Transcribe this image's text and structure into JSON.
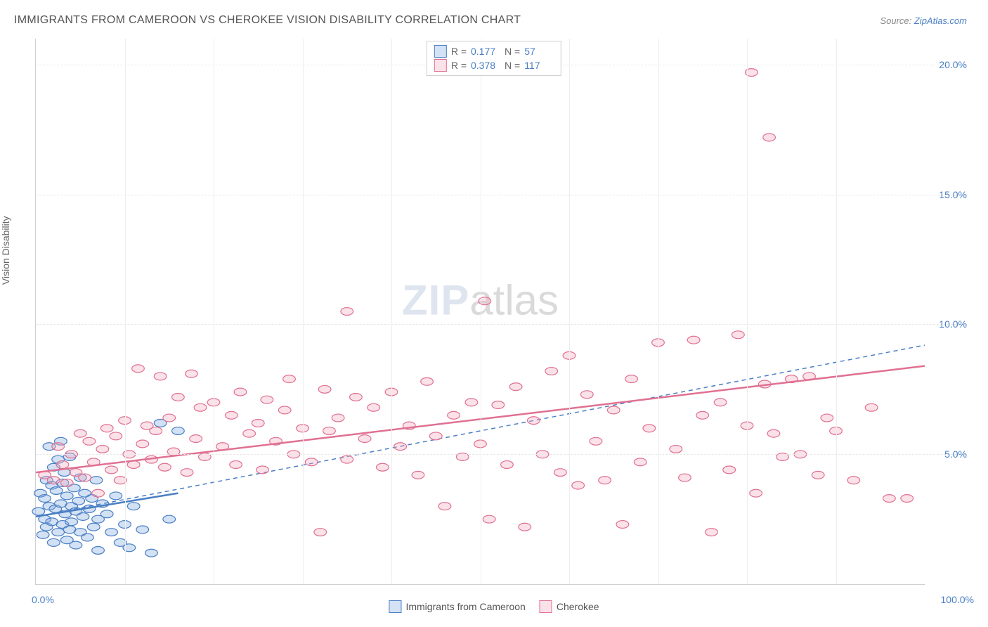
{
  "title": "IMMIGRANTS FROM CAMEROON VS CHEROKEE VISION DISABILITY CORRELATION CHART",
  "source_prefix": "Source: ",
  "source_name": "ZipAtlas.com",
  "y_axis_label": "Vision Disability",
  "watermark_zip": "ZIP",
  "watermark_atlas": "atlas",
  "chart": {
    "type": "scatter",
    "xlim": [
      0,
      100
    ],
    "ylim": [
      0,
      21
    ],
    "x_ticks": [
      0,
      100
    ],
    "x_tick_labels": [
      "0.0%",
      "100.0%"
    ],
    "x_minor_ticks": [
      10,
      20,
      30,
      40,
      50,
      60,
      70,
      80,
      90
    ],
    "y_ticks": [
      5,
      10,
      15,
      20
    ],
    "y_tick_labels": [
      "5.0%",
      "10.0%",
      "15.0%",
      "20.0%"
    ],
    "grid_color": "#e8e8e8",
    "axis_color": "#d0d0d0",
    "background": "#ffffff",
    "marker_radius": 7,
    "series": [
      {
        "key": "cameroon",
        "label": "Immigrants from Cameroon",
        "color_fill": "#7fa8e0",
        "color_stroke": "#4a7fc4",
        "R": "0.177",
        "N": "57",
        "trend_solid": {
          "x1": 0,
          "y1": 2.6,
          "x2": 16,
          "y2": 3.5
        },
        "trend_dashed": {
          "x1": 0,
          "y1": 2.6,
          "x2": 100,
          "y2": 9.2
        },
        "points": [
          [
            0.3,
            2.8
          ],
          [
            0.5,
            3.5
          ],
          [
            0.8,
            1.9
          ],
          [
            1.0,
            2.5
          ],
          [
            1.0,
            3.3
          ],
          [
            1.2,
            4.0
          ],
          [
            1.2,
            2.2
          ],
          [
            1.5,
            3.0
          ],
          [
            1.5,
            5.3
          ],
          [
            1.8,
            2.4
          ],
          [
            1.8,
            3.8
          ],
          [
            2.0,
            1.6
          ],
          [
            2.0,
            4.5
          ],
          [
            2.2,
            2.9
          ],
          [
            2.3,
            3.6
          ],
          [
            2.5,
            2.0
          ],
          [
            2.5,
            4.8
          ],
          [
            2.8,
            3.1
          ],
          [
            2.8,
            5.5
          ],
          [
            3.0,
            2.3
          ],
          [
            3.0,
            3.9
          ],
          [
            3.2,
            4.3
          ],
          [
            3.3,
            2.7
          ],
          [
            3.5,
            1.7
          ],
          [
            3.5,
            3.4
          ],
          [
            3.8,
            2.1
          ],
          [
            3.8,
            4.9
          ],
          [
            4.0,
            3.0
          ],
          [
            4.0,
            2.4
          ],
          [
            4.3,
            3.7
          ],
          [
            4.5,
            1.5
          ],
          [
            4.5,
            2.8
          ],
          [
            4.8,
            3.2
          ],
          [
            5.0,
            2.0
          ],
          [
            5.0,
            4.1
          ],
          [
            5.3,
            2.6
          ],
          [
            5.5,
            3.5
          ],
          [
            5.8,
            1.8
          ],
          [
            6.0,
            2.9
          ],
          [
            6.3,
            3.3
          ],
          [
            6.5,
            2.2
          ],
          [
            6.8,
            4.0
          ],
          [
            7.0,
            2.5
          ],
          [
            7.0,
            1.3
          ],
          [
            7.5,
            3.1
          ],
          [
            8.0,
            2.7
          ],
          [
            8.5,
            2.0
          ],
          [
            9.0,
            3.4
          ],
          [
            9.5,
            1.6
          ],
          [
            10.0,
            2.3
          ],
          [
            10.5,
            1.4
          ],
          [
            11.0,
            3.0
          ],
          [
            12.0,
            2.1
          ],
          [
            13.0,
            1.2
          ],
          [
            14.0,
            6.2
          ],
          [
            15.0,
            2.5
          ],
          [
            16.0,
            5.9
          ]
        ]
      },
      {
        "key": "cherokee",
        "label": "Cherokee",
        "color_fill": "#f4a8bc",
        "color_stroke": "#e07092",
        "R": "0.378",
        "N": "117",
        "trend_solid": {
          "x1": 0,
          "y1": 4.3,
          "x2": 100,
          "y2": 8.4
        },
        "points": [
          [
            1.0,
            4.2
          ],
          [
            2.0,
            4.0
          ],
          [
            2.5,
            5.3
          ],
          [
            3.0,
            4.6
          ],
          [
            3.5,
            3.9
          ],
          [
            4.0,
            5.0
          ],
          [
            4.5,
            4.3
          ],
          [
            5.0,
            5.8
          ],
          [
            5.5,
            4.1
          ],
          [
            6.0,
            5.5
          ],
          [
            6.5,
            4.7
          ],
          [
            7.0,
            3.5
          ],
          [
            7.5,
            5.2
          ],
          [
            8.0,
            6.0
          ],
          [
            8.5,
            4.4
          ],
          [
            9.0,
            5.7
          ],
          [
            9.5,
            4.0
          ],
          [
            10.0,
            6.3
          ],
          [
            10.5,
            5.0
          ],
          [
            11.0,
            4.6
          ],
          [
            11.5,
            8.3
          ],
          [
            12.0,
            5.4
          ],
          [
            12.5,
            6.1
          ],
          [
            13.0,
            4.8
          ],
          [
            13.5,
            5.9
          ],
          [
            14.0,
            8.0
          ],
          [
            14.5,
            4.5
          ],
          [
            15.0,
            6.4
          ],
          [
            15.5,
            5.1
          ],
          [
            16.0,
            7.2
          ],
          [
            17.0,
            4.3
          ],
          [
            17.5,
            8.1
          ],
          [
            18.0,
            5.6
          ],
          [
            18.5,
            6.8
          ],
          [
            19.0,
            4.9
          ],
          [
            20.0,
            7.0
          ],
          [
            21.0,
            5.3
          ],
          [
            22.0,
            6.5
          ],
          [
            22.5,
            4.6
          ],
          [
            23.0,
            7.4
          ],
          [
            24.0,
            5.8
          ],
          [
            25.0,
            6.2
          ],
          [
            25.5,
            4.4
          ],
          [
            26.0,
            7.1
          ],
          [
            27.0,
            5.5
          ],
          [
            28.0,
            6.7
          ],
          [
            28.5,
            7.9
          ],
          [
            29.0,
            5.0
          ],
          [
            30.0,
            6.0
          ],
          [
            31.0,
            4.7
          ],
          [
            32.0,
            2.0
          ],
          [
            32.5,
            7.5
          ],
          [
            33.0,
            5.9
          ],
          [
            34.0,
            6.4
          ],
          [
            35.0,
            4.8
          ],
          [
            35.0,
            10.5
          ],
          [
            36.0,
            7.2
          ],
          [
            37.0,
            5.6
          ],
          [
            38.0,
            6.8
          ],
          [
            39.0,
            4.5
          ],
          [
            40.0,
            7.4
          ],
          [
            41.0,
            5.3
          ],
          [
            42.0,
            6.1
          ],
          [
            43.0,
            4.2
          ],
          [
            44.0,
            7.8
          ],
          [
            45.0,
            5.7
          ],
          [
            46.0,
            3.0
          ],
          [
            47.0,
            6.5
          ],
          [
            48.0,
            4.9
          ],
          [
            49.0,
            7.0
          ],
          [
            50.0,
            5.4
          ],
          [
            50.5,
            10.9
          ],
          [
            51.0,
            2.5
          ],
          [
            52.0,
            6.9
          ],
          [
            53.0,
            4.6
          ],
          [
            54.0,
            7.6
          ],
          [
            55.0,
            2.2
          ],
          [
            56.0,
            6.3
          ],
          [
            57.0,
            5.0
          ],
          [
            58.0,
            8.2
          ],
          [
            59.0,
            4.3
          ],
          [
            60.0,
            8.8
          ],
          [
            61.0,
            3.8
          ],
          [
            62.0,
            7.3
          ],
          [
            63.0,
            5.5
          ],
          [
            64.0,
            4.0
          ],
          [
            65.0,
            6.7
          ],
          [
            66.0,
            2.3
          ],
          [
            67.0,
            7.9
          ],
          [
            68.0,
            4.7
          ],
          [
            69.0,
            6.0
          ],
          [
            70.0,
            9.3
          ],
          [
            72.0,
            5.2
          ],
          [
            73.0,
            4.1
          ],
          [
            74.0,
            9.4
          ],
          [
            75.0,
            6.5
          ],
          [
            76.0,
            2.0
          ],
          [
            77.0,
            7.0
          ],
          [
            78.0,
            4.4
          ],
          [
            79.0,
            9.6
          ],
          [
            80.0,
            6.1
          ],
          [
            80.5,
            19.7
          ],
          [
            81.0,
            3.5
          ],
          [
            82.0,
            7.7
          ],
          [
            82.5,
            17.2
          ],
          [
            83.0,
            5.8
          ],
          [
            84.0,
            4.9
          ],
          [
            85.0,
            7.9
          ],
          [
            86.0,
            5.0
          ],
          [
            87.0,
            8.0
          ],
          [
            88.0,
            4.2
          ],
          [
            89.0,
            6.4
          ],
          [
            90.0,
            5.9
          ],
          [
            92.0,
            4.0
          ],
          [
            94.0,
            6.8
          ],
          [
            96.0,
            3.3
          ],
          [
            98.0,
            3.3
          ]
        ]
      }
    ]
  },
  "legend_top_labels": {
    "R": "R  =",
    "N": "N  ="
  }
}
